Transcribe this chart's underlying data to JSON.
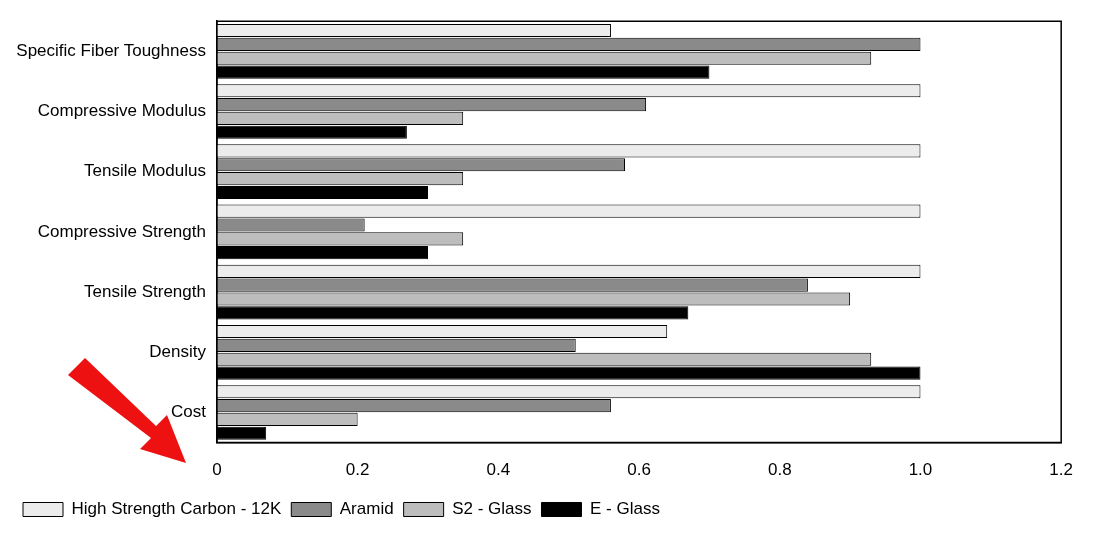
{
  "chart_data": {
    "type": "bar",
    "orientation": "horizontal",
    "categories": [
      "Specific Fiber Toughness",
      "Compressive Modulus",
      "Tensile Modulus",
      "Compressive Strength",
      "Tensile Strength",
      "Density",
      "Cost"
    ],
    "series": [
      {
        "name": "High Strength Carbon - 12K",
        "color": "#ececec",
        "values": [
          0.56,
          1.0,
          1.0,
          1.0,
          1.0,
          0.64,
          1.0
        ]
      },
      {
        "name": "Aramid",
        "color": "#8a8a8a",
        "values": [
          1.0,
          0.61,
          0.58,
          0.21,
          0.84,
          0.51,
          0.56
        ]
      },
      {
        "name": "S2 - Glass",
        "color": "#bdbdbd",
        "values": [
          0.93,
          0.35,
          0.35,
          0.35,
          0.9,
          0.93,
          0.2
        ]
      },
      {
        "name": "E - Glass",
        "color": "#000000",
        "values": [
          0.7,
          0.27,
          0.3,
          0.3,
          0.67,
          1.0,
          0.07
        ]
      }
    ],
    "xlim": [
      0,
      1.2
    ],
    "xticks": [
      0,
      0.2,
      0.4,
      0.6,
      0.8,
      {
        "value": 1,
        "label": "1.0"
      },
      1.2
    ],
    "grid": false,
    "legend": "bottom"
  }
}
